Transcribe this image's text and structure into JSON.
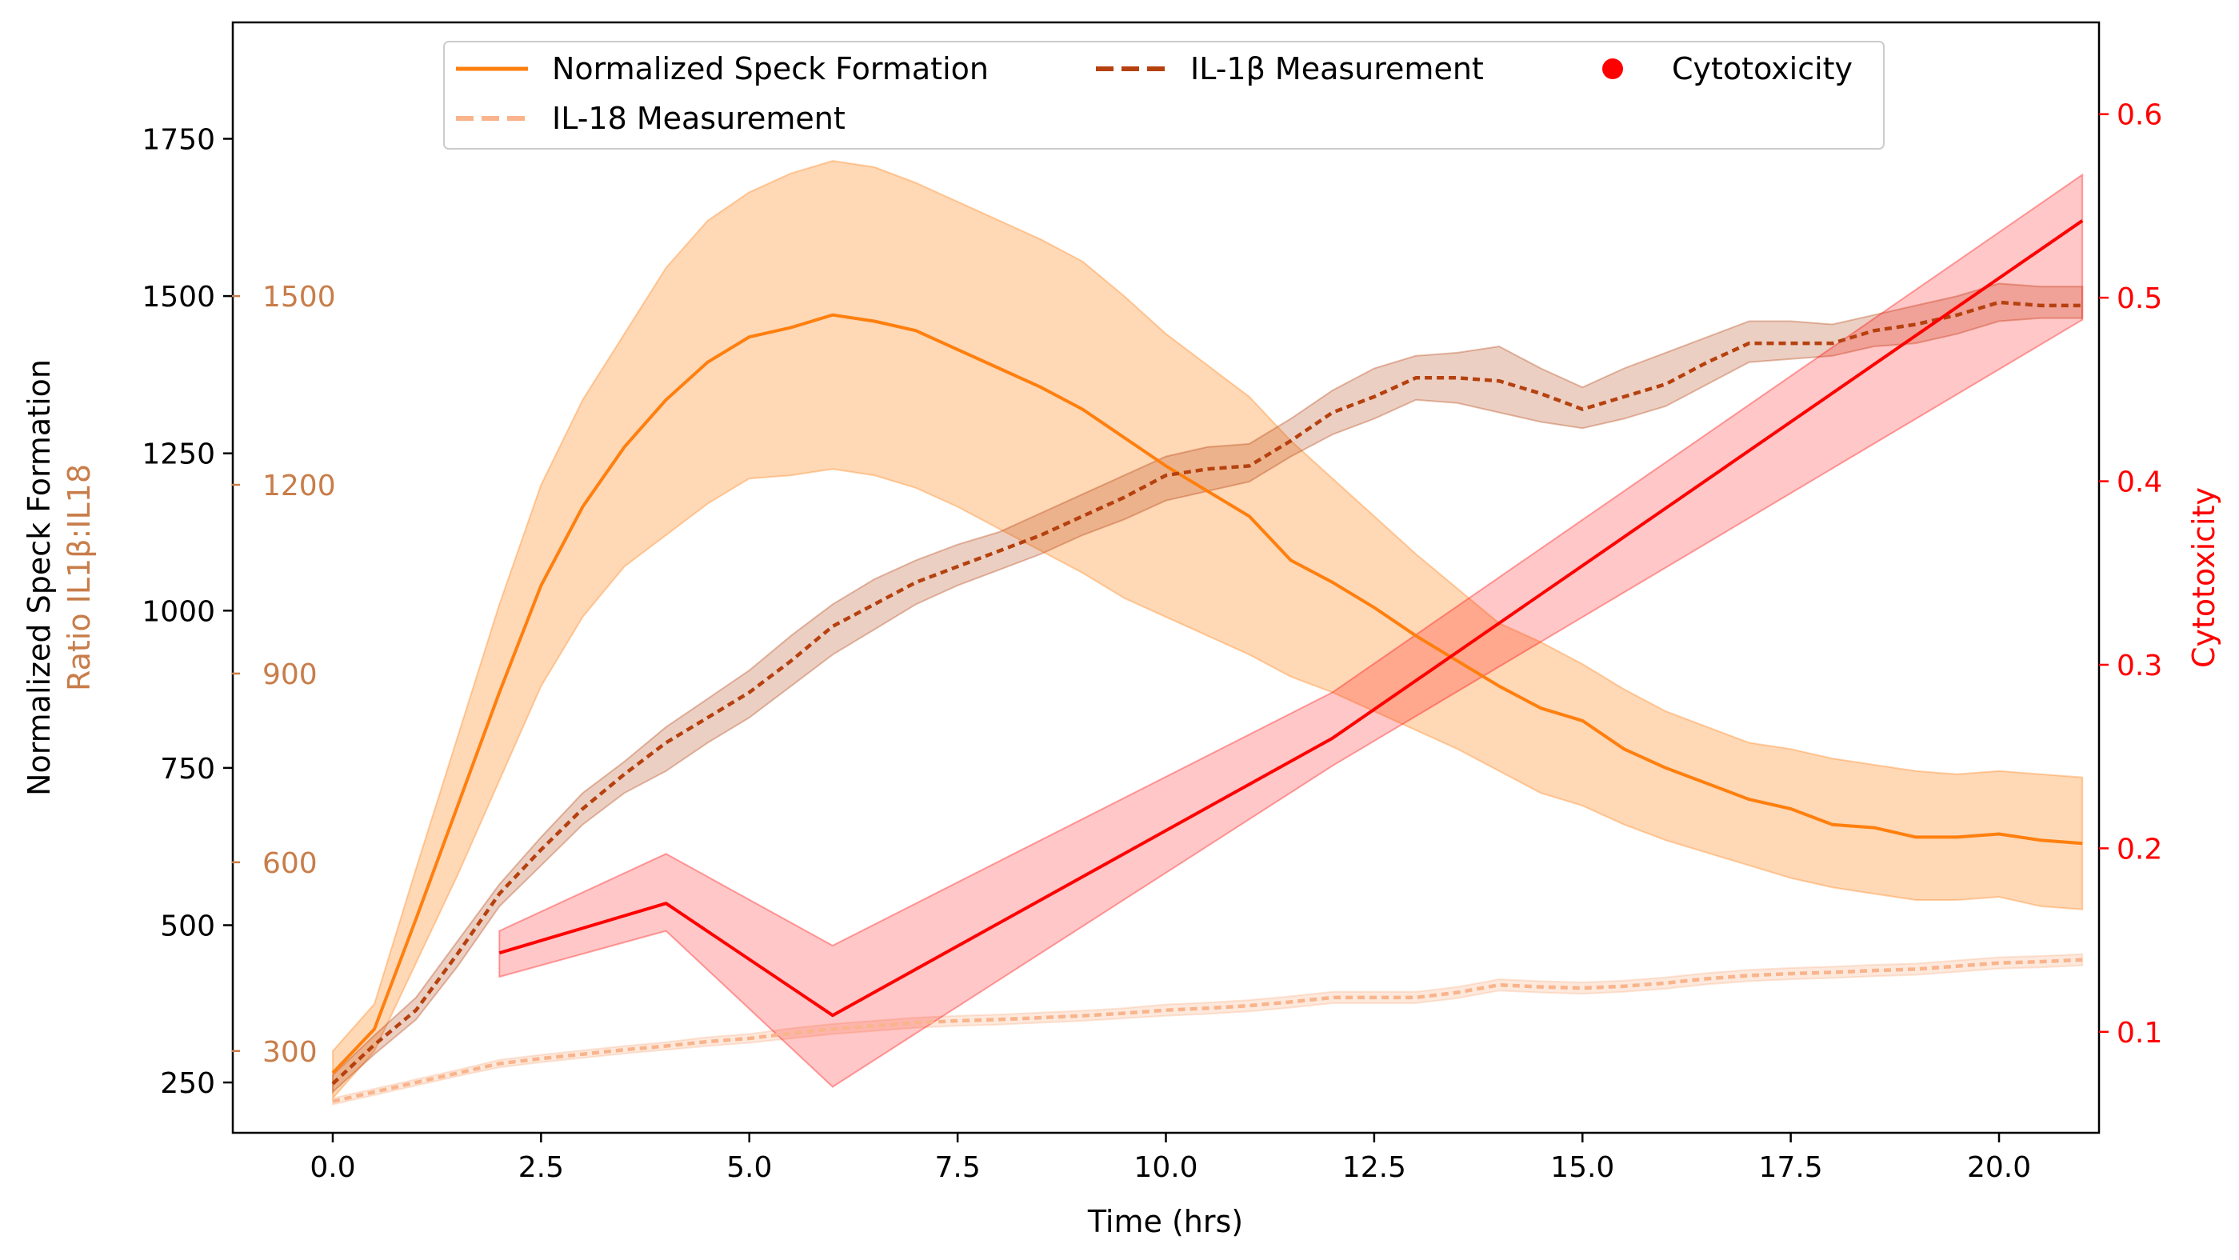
{
  "chart_data": {
    "type": "line",
    "xlabel": "Time (hrs)",
    "ylabel_left": "Normalized Speck Formation",
    "ylabel_ratio": "Ratio IL1β:IL18",
    "ylabel_right": "Cytotoxicity",
    "xlim": [
      -1.2,
      21.2
    ],
    "ylim_left": [
      170,
      1935
    ],
    "ylim_ratio": [
      170,
      1935
    ],
    "ylim_right": [
      0.045,
      0.65
    ],
    "x_ticks": [
      0.0,
      2.5,
      5.0,
      7.5,
      10.0,
      12.5,
      15.0,
      17.5,
      20.0
    ],
    "x_tick_labels": [
      "0.0",
      "2.5",
      "5.0",
      "7.5",
      "10.0",
      "12.5",
      "15.0",
      "17.5",
      "20.0"
    ],
    "y_left_ticks": [
      250,
      500,
      750,
      1000,
      1250,
      1500,
      1750
    ],
    "y_left_tick_labels": [
      "250",
      "500",
      "750",
      "1000",
      "1250",
      "1500",
      "1750"
    ],
    "ratio_ticks": [
      300,
      600,
      900,
      1200,
      1500
    ],
    "ratio_tick_labels": [
      "300",
      "600",
      "900",
      "1200",
      "1500"
    ],
    "y_right_ticks": [
      0.1,
      0.2,
      0.3,
      0.4,
      0.5,
      0.6
    ],
    "y_right_tick_labels": [
      "0.1",
      "0.2",
      "0.3",
      "0.4",
      "0.5",
      "0.6"
    ],
    "legend": {
      "placement": "top-center",
      "entries": [
        "Normalized Speck Formation",
        "IL-1β Measurement",
        "Cytotoxicity",
        "IL-18 Measurement"
      ]
    },
    "colors": {
      "speck": "#ff7f0e",
      "il1b": "#b5410f",
      "il18": "#f9b48c",
      "cytotox": "#ff0000",
      "ratio_axis": "#c87d4a"
    },
    "series": [
      {
        "name": "Normalized Speck Formation",
        "axis": "left",
        "style": "solid",
        "x": [
          0,
          0.5,
          1,
          1.5,
          2,
          2.5,
          3,
          3.5,
          4,
          4.5,
          5,
          5.5,
          6,
          6.5,
          7,
          7.5,
          8,
          8.5,
          9,
          9.5,
          10,
          10.5,
          11,
          11.5,
          12,
          12.5,
          13,
          13.5,
          14,
          14.5,
          15,
          15.5,
          16,
          16.5,
          17,
          17.5,
          18,
          18.5,
          19,
          19.5,
          20,
          20.5,
          21
        ],
        "y": [
          265,
          335,
          510,
          690,
          870,
          1040,
          1165,
          1260,
          1335,
          1395,
          1435,
          1450,
          1470,
          1460,
          1445,
          1415,
          1385,
          1355,
          1320,
          1275,
          1230,
          1190,
          1150,
          1080,
          1045,
          1005,
          960,
          920,
          880,
          845,
          825,
          780,
          750,
          725,
          700,
          685,
          660,
          655,
          640,
          640,
          645,
          635,
          630
        ],
        "y_lower": [
          225,
          300,
          440,
          580,
          730,
          880,
          990,
          1070,
          1120,
          1170,
          1210,
          1215,
          1225,
          1215,
          1195,
          1165,
          1130,
          1095,
          1060,
          1020,
          990,
          960,
          930,
          895,
          870,
          840,
          810,
          780,
          745,
          710,
          690,
          660,
          635,
          615,
          595,
          575,
          560,
          550,
          540,
          540,
          545,
          530,
          525
        ],
        "y_upper": [
          300,
          375,
          590,
          800,
          1010,
          1200,
          1335,
          1440,
          1545,
          1620,
          1665,
          1695,
          1715,
          1705,
          1680,
          1650,
          1620,
          1590,
          1555,
          1500,
          1440,
          1390,
          1340,
          1270,
          1210,
          1150,
          1090,
          1035,
          980,
          950,
          915,
          875,
          840,
          815,
          790,
          780,
          765,
          755,
          745,
          740,
          745,
          740,
          735
        ]
      },
      {
        "name": "IL-1β Measurement",
        "axis": "ratio",
        "style": "dashed",
        "x": [
          0,
          0.5,
          1,
          1.5,
          2,
          2.5,
          3,
          3.5,
          4,
          4.5,
          5,
          5.5,
          6,
          6.5,
          7,
          7.5,
          8,
          8.5,
          9,
          9.5,
          10,
          10.5,
          11,
          11.5,
          12,
          12.5,
          13,
          13.5,
          14,
          14.5,
          15,
          15.5,
          16,
          16.5,
          17,
          17.5,
          18,
          18.5,
          19,
          19.5,
          20,
          20.5,
          21
        ],
        "y": [
          248,
          310,
          365,
          455,
          550,
          620,
          685,
          740,
          790,
          830,
          870,
          920,
          975,
          1010,
          1045,
          1070,
          1095,
          1120,
          1150,
          1180,
          1215,
          1225,
          1230,
          1270,
          1315,
          1340,
          1370,
          1370,
          1365,
          1345,
          1320,
          1340,
          1360,
          1395,
          1425,
          1425,
          1425,
          1445,
          1455,
          1470,
          1490,
          1485,
          1485
        ],
        "y_lower": [
          235,
          295,
          350,
          435,
          530,
          595,
          660,
          710,
          745,
          790,
          830,
          880,
          930,
          970,
          1010,
          1040,
          1065,
          1090,
          1120,
          1145,
          1175,
          1190,
          1205,
          1245,
          1280,
          1305,
          1335,
          1330,
          1315,
          1300,
          1290,
          1305,
          1325,
          1360,
          1395,
          1400,
          1405,
          1420,
          1425,
          1440,
          1460,
          1465,
          1465
        ],
        "y_upper": [
          262,
          325,
          385,
          475,
          565,
          640,
          710,
          760,
          815,
          860,
          905,
          960,
          1010,
          1050,
          1080,
          1105,
          1125,
          1155,
          1185,
          1215,
          1245,
          1260,
          1265,
          1305,
          1350,
          1385,
          1405,
          1410,
          1420,
          1385,
          1355,
          1385,
          1410,
          1435,
          1460,
          1460,
          1455,
          1470,
          1485,
          1500,
          1520,
          1515,
          1515
        ]
      },
      {
        "name": "IL-18 Measurement",
        "axis": "ratio",
        "style": "dashed",
        "x": [
          0,
          0.5,
          1,
          1.5,
          2,
          2.5,
          3,
          3.5,
          4,
          4.5,
          5,
          5.5,
          6,
          6.5,
          7,
          7.5,
          8,
          8.5,
          9,
          9.5,
          10,
          10.5,
          11,
          11.5,
          12,
          12.5,
          13,
          13.5,
          14,
          14.5,
          15,
          15.5,
          16,
          16.5,
          17,
          17.5,
          18,
          18.5,
          19,
          19.5,
          20,
          20.5,
          21
        ],
        "y": [
          220,
          235,
          250,
          265,
          280,
          288,
          295,
          302,
          308,
          315,
          320,
          328,
          335,
          340,
          345,
          348,
          350,
          353,
          356,
          360,
          365,
          368,
          372,
          378,
          385,
          385,
          385,
          393,
          405,
          402,
          400,
          403,
          408,
          415,
          420,
          423,
          425,
          428,
          430,
          435,
          440,
          442,
          445
        ],
        "y_lower": [
          215,
          230,
          245,
          260,
          274,
          282,
          289,
          296,
          302,
          308,
          313,
          320,
          327,
          332,
          337,
          340,
          342,
          345,
          348,
          352,
          356,
          359,
          363,
          369,
          376,
          376,
          376,
          384,
          396,
          393,
          391,
          394,
          399,
          406,
          411,
          414,
          416,
          419,
          421,
          426,
          431,
          433,
          436
        ],
        "y_upper": [
          225,
          240,
          255,
          270,
          286,
          294,
          301,
          308,
          314,
          322,
          327,
          336,
          343,
          348,
          353,
          356,
          358,
          361,
          364,
          368,
          374,
          377,
          381,
          387,
          394,
          394,
          394,
          402,
          414,
          411,
          409,
          412,
          417,
          424,
          429,
          432,
          434,
          437,
          439,
          444,
          449,
          451,
          454
        ]
      },
      {
        "name": "Cytotoxicity",
        "axis": "right",
        "style": "solid",
        "x": [
          2,
          4,
          6,
          12,
          21
        ],
        "y": [
          0.143,
          0.17,
          0.109,
          0.26,
          0.542
        ],
        "y_lower": [
          0.13,
          0.155,
          0.07,
          0.245,
          0.488
        ],
        "y_upper": [
          0.155,
          0.197,
          0.147,
          0.285,
          0.567
        ]
      }
    ]
  }
}
